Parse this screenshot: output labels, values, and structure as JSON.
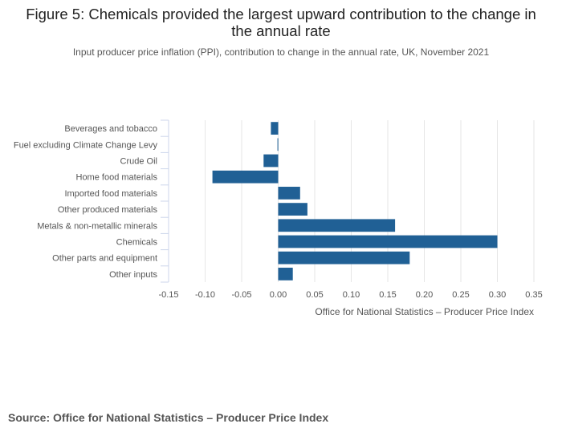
{
  "title": "Figure 5: Chemicals provided the largest upward contribution to the change in the annual rate",
  "subtitle": "Input producer price inflation (PPI), contribution to change in the annual rate, UK, November 2021",
  "source": "Source: Office for National Statistics – Producer Price Index",
  "colors": {
    "bar": "#206095",
    "grid": "#e6e6e6",
    "axis": "#ccd6eb",
    "text": "#555555"
  },
  "chart_data": {
    "type": "bar",
    "orientation": "horizontal",
    "categories": [
      "Beverages and tobacco",
      "Fuel excluding Climate Change Levy",
      "Crude Oil",
      "Home food materials",
      "Imported food materials",
      "Other produced materials",
      "Metals & non-metallic minerals",
      "Chemicals",
      "Other parts and equipment",
      "Other inputs"
    ],
    "values": [
      -0.01,
      -0.001,
      -0.02,
      -0.09,
      0.03,
      0.04,
      0.16,
      0.3,
      0.18,
      0.02
    ],
    "xlim": [
      -0.15,
      0.35
    ],
    "xticks": [
      -0.15,
      -0.1,
      -0.05,
      0.0,
      0.05,
      0.1,
      0.15,
      0.2,
      0.25,
      0.3,
      0.35
    ],
    "xtick_labels": [
      "-0.15",
      "-0.10",
      "-0.05",
      "0.00",
      "0.05",
      "0.10",
      "0.15",
      "0.20",
      "0.25",
      "0.30",
      "0.35"
    ],
    "xlabel": "Office for National Statistics – Producer Price Index",
    "ylabel": "",
    "grid": true,
    "legend": "none"
  }
}
